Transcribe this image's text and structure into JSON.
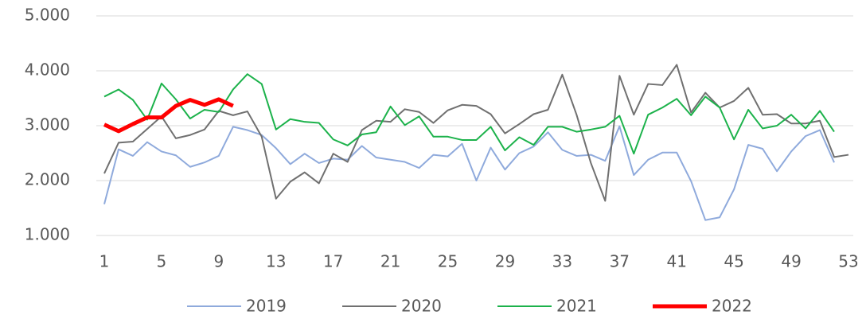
{
  "chart_data": {
    "type": "line",
    "x": [
      1,
      2,
      3,
      4,
      5,
      6,
      7,
      8,
      9,
      10,
      11,
      12,
      13,
      14,
      15,
      16,
      17,
      18,
      19,
      20,
      21,
      22,
      23,
      24,
      25,
      26,
      27,
      28,
      29,
      30,
      31,
      32,
      33,
      34,
      35,
      36,
      37,
      38,
      39,
      40,
      41,
      42,
      43,
      44,
      45,
      46,
      47,
      48,
      49,
      50,
      51,
      52,
      53
    ],
    "xlim": [
      1,
      53
    ],
    "xticks": [
      1,
      5,
      9,
      13,
      17,
      21,
      25,
      29,
      33,
      37,
      41,
      45,
      49,
      53
    ],
    "ylim": [
      1000,
      5000
    ],
    "yticks": [
      {
        "value": 1000,
        "label": "1.000"
      },
      {
        "value": 2000,
        "label": "2.000"
      },
      {
        "value": 3000,
        "label": "3.000"
      },
      {
        "value": 4000,
        "label": "4.000"
      },
      {
        "value": 5000,
        "label": "5.000"
      }
    ],
    "grid": true,
    "legend": "bottom",
    "series": [
      {
        "name": "2019",
        "color": "#8faadc",
        "width": 2,
        "values": [
          1570,
          2570,
          2450,
          2700,
          2530,
          2460,
          2250,
          2330,
          2450,
          2980,
          2920,
          2830,
          2590,
          2300,
          2490,
          2320,
          2400,
          2380,
          2630,
          2420,
          2380,
          2340,
          2230,
          2470,
          2440,
          2670,
          2000,
          2600,
          2200,
          2500,
          2620,
          2880,
          2560,
          2450,
          2470,
          2360,
          2990,
          2100,
          2380,
          2510,
          2510,
          1990,
          1280,
          1330,
          1840,
          2650,
          2580,
          2170,
          2530,
          2810,
          2920,
          2330,
          null
        ]
      },
      {
        "name": "2020",
        "color": "#707070",
        "width": 2,
        "values": [
          2130,
          2690,
          2710,
          2940,
          3170,
          2770,
          2830,
          2930,
          3270,
          3190,
          3260,
          2800,
          1670,
          1980,
          2150,
          1950,
          2490,
          2340,
          2920,
          3090,
          3070,
          3300,
          3250,
          3050,
          3280,
          3380,
          3360,
          3210,
          2860,
          3030,
          3210,
          3290,
          3930,
          3200,
          2320,
          1630,
          3910,
          3200,
          3760,
          3740,
          4110,
          3240,
          3600,
          3330,
          3450,
          3690,
          3200,
          3210,
          3040,
          3040,
          3090,
          2430,
          2470
        ]
      },
      {
        "name": "2021",
        "color": "#1cb24b",
        "width": 2,
        "values": [
          3530,
          3660,
          3470,
          3110,
          3770,
          3480,
          3130,
          3290,
          3250,
          3660,
          3940,
          3760,
          2930,
          3120,
          3070,
          3050,
          2750,
          2640,
          2840,
          2880,
          3350,
          3010,
          3170,
          2800,
          2800,
          2740,
          2740,
          2980,
          2550,
          2790,
          2650,
          2980,
          2980,
          2890,
          2930,
          2980,
          3180,
          2490,
          3200,
          3330,
          3490,
          3190,
          3530,
          3330,
          2750,
          3290,
          2950,
          3000,
          3200,
          2950,
          3270,
          2890,
          null
        ]
      },
      {
        "name": "2022",
        "color": "#ff0000",
        "width": 5,
        "values": [
          3020,
          2900,
          3030,
          3150,
          3150,
          3360,
          3470,
          3380,
          3480,
          3360,
          null,
          null,
          null,
          null,
          null,
          null,
          null,
          null,
          null,
          null,
          null,
          null,
          null,
          null,
          null,
          null,
          null,
          null,
          null,
          null,
          null,
          null,
          null,
          null,
          null,
          null,
          null,
          null,
          null,
          null,
          null,
          null,
          null,
          null,
          null,
          null,
          null,
          null,
          null,
          null,
          null,
          null,
          null
        ]
      }
    ]
  }
}
